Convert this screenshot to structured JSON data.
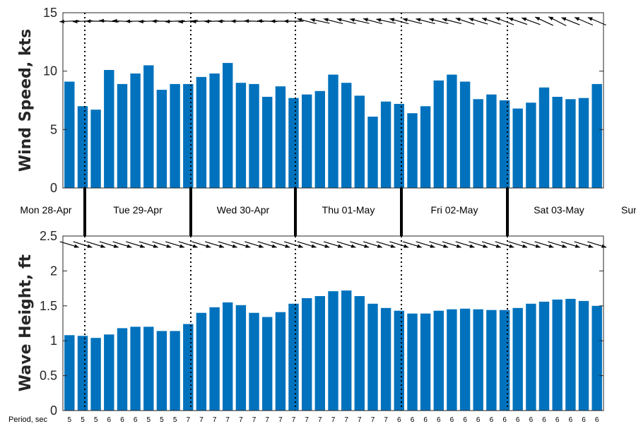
{
  "colors": {
    "bar": "#0072BD",
    "arrow": "#000000",
    "axis": "#262626"
  },
  "chart_data": [
    {
      "type": "bar",
      "ylabel": "Wind Speed, kts",
      "ylim": [
        0,
        15
      ],
      "yticks": [
        "0",
        "5",
        "10",
        "15"
      ],
      "values": [
        9.1,
        7.0,
        6.7,
        10.1,
        8.9,
        9.8,
        10.5,
        8.4,
        8.9,
        8.9,
        9.5,
        9.8,
        10.7,
        9.0,
        8.9,
        7.8,
        8.7,
        7.7,
        8.0,
        8.3,
        9.7,
        9.0,
        7.9,
        6.1,
        7.4,
        7.2,
        6.4,
        7.0,
        9.2,
        9.7,
        9.1,
        7.6,
        8.0,
        7.5,
        6.8,
        7.3,
        8.6,
        7.8,
        7.6,
        7.7,
        8.9
      ],
      "direction_arrows": [
        183,
        183,
        180,
        176,
        177,
        181,
        183,
        180,
        183,
        185,
        183,
        182,
        181,
        180,
        178,
        178,
        180,
        180,
        166,
        168,
        166,
        166,
        167,
        165,
        168,
        165,
        166,
        166,
        166,
        166,
        162,
        163,
        162,
        159,
        161,
        160,
        155,
        153,
        158,
        157,
        157
      ]
    },
    {
      "type": "bar",
      "ylabel": "Wave Height, ft",
      "ylim": [
        0,
        2.5
      ],
      "yticks": [
        "0",
        "0.5",
        "1",
        "1.5",
        "2",
        "2.5"
      ],
      "values": [
        1.08,
        1.07,
        1.04,
        1.09,
        1.18,
        1.2,
        1.2,
        1.14,
        1.14,
        1.24,
        1.4,
        1.48,
        1.55,
        1.51,
        1.4,
        1.34,
        1.41,
        1.53,
        1.61,
        1.64,
        1.71,
        1.72,
        1.64,
        1.53,
        1.47,
        1.43,
        1.39,
        1.39,
        1.43,
        1.45,
        1.46,
        1.45,
        1.44,
        1.44,
        1.47,
        1.53,
        1.56,
        1.59,
        1.6,
        1.57,
        1.5
      ],
      "direction_arrows": [
        -17,
        -17,
        -17,
        -17,
        -17,
        -17,
        -17,
        -17,
        -17,
        -17,
        -17,
        -17,
        -17,
        -17,
        -17,
        -17,
        -17,
        -17,
        -17,
        -17,
        -17,
        -17,
        -17,
        -17,
        -17,
        -17,
        -17,
        -17,
        -17,
        -17,
        -17,
        -17,
        -17,
        -17,
        -17,
        -17,
        -17,
        -17,
        -17,
        -17,
        -17
      ]
    }
  ],
  "days": [
    "Mon 28-Apr",
    "Tue 29-Apr",
    "Wed 30-Apr",
    "Thu 01-May",
    "Fri 02-May",
    "Sat 03-May",
    "Sun"
  ],
  "period_title": "Period, sec",
  "periods": [
    "5",
    "5",
    "5",
    "6",
    "6",
    "6",
    "5",
    "5",
    "5",
    "7",
    "7",
    "7",
    "7",
    "7",
    "7",
    "7",
    "7",
    "7",
    "7",
    "7",
    "7",
    "7",
    "7",
    "7",
    "7",
    "6",
    "6",
    "6",
    "6",
    "6",
    "6",
    "6",
    "6",
    "6",
    "6",
    "6",
    "6",
    "6",
    "6",
    "6",
    "6"
  ]
}
